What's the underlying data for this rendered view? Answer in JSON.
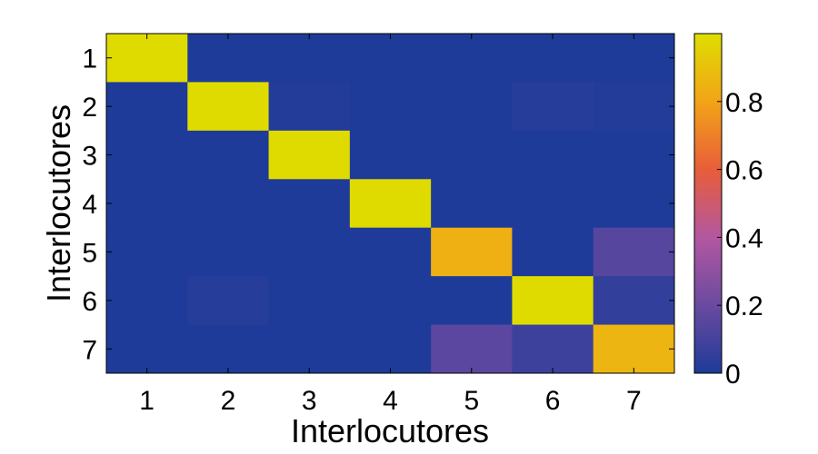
{
  "chart_data": {
    "type": "heatmap",
    "title": "",
    "xlabel": "Interlocutores",
    "ylabel": "Interlocutores",
    "x_categories": [
      "1",
      "2",
      "3",
      "4",
      "5",
      "6",
      "7"
    ],
    "y_categories": [
      "1",
      "2",
      "3",
      "4",
      "5",
      "6",
      "7"
    ],
    "values": [
      [
        0.99,
        0.0,
        0.0,
        0.0,
        0.0,
        0.0,
        0.0
      ],
      [
        0.0,
        0.99,
        0.01,
        0.0,
        0.0,
        0.02,
        0.01
      ],
      [
        0.0,
        0.0,
        0.99,
        0.0,
        0.0,
        0.0,
        0.0
      ],
      [
        0.0,
        0.0,
        0.0,
        0.99,
        0.0,
        0.0,
        0.0
      ],
      [
        0.0,
        0.0,
        0.0,
        0.0,
        0.84,
        0.0,
        0.15
      ],
      [
        0.0,
        0.02,
        0.0,
        0.0,
        0.0,
        0.99,
        0.05
      ],
      [
        0.0,
        0.0,
        0.0,
        0.0,
        0.16,
        0.08,
        0.86
      ]
    ],
    "colorbar": {
      "range": [
        0,
        1
      ],
      "tick_values": [
        0,
        0.2,
        0.4,
        0.6,
        0.8
      ],
      "tick_labels": [
        "0",
        "0.2",
        "0.4",
        "0.6",
        "0.8"
      ]
    },
    "colormap": [
      "#1f3b99",
      "#6a4aa0",
      "#b357a0",
      "#e85d3a",
      "#f2a418",
      "#dede00"
    ]
  }
}
